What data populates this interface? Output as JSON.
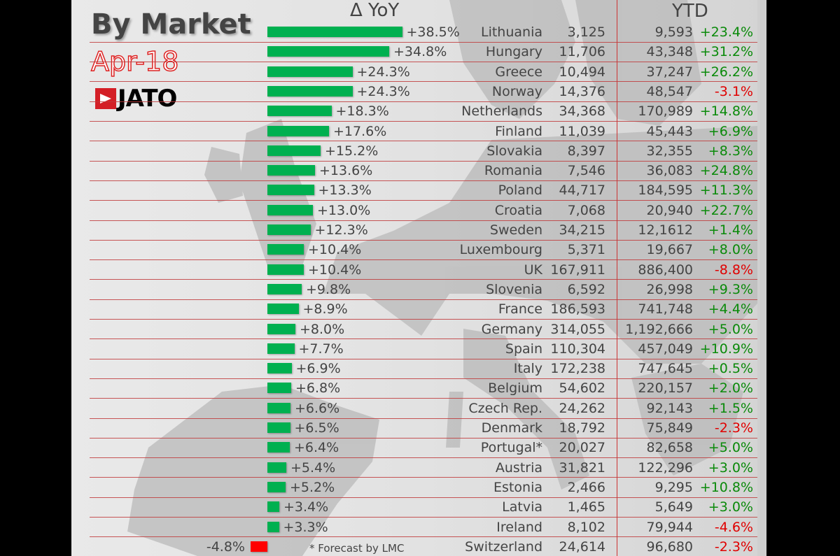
{
  "title": "By Market",
  "date": "Apr-18",
  "logo": "JATO",
  "footnote": "* Forecast by LMC",
  "colors": {
    "positive": "#00b050",
    "negative": "#ff0000",
    "ytd_positive": "#0a8a0a",
    "ytd_negative": "#e00000",
    "grid": "#c0393b",
    "text": "#444444"
  },
  "chart_data": {
    "type": "bar",
    "orientation": "horizontal",
    "headers": {
      "yoy": "Δ YoY",
      "ytd": "YTD"
    },
    "rows": [
      {
        "country": "Lithuania",
        "yoy": "+38.5%",
        "yoy_value": 38.5,
        "month": "3,125",
        "ytd": "9,593",
        "ytd_pct": "+23.4%"
      },
      {
        "country": "Hungary",
        "yoy": "+34.8%",
        "yoy_value": 34.8,
        "month": "11,706",
        "ytd": "43,348",
        "ytd_pct": "+31.2%"
      },
      {
        "country": "Greece",
        "yoy": "+24.3%",
        "yoy_value": 24.3,
        "month": "10,494",
        "ytd": "37,247",
        "ytd_pct": "+26.2%"
      },
      {
        "country": "Norway",
        "yoy": "+24.3%",
        "yoy_value": 24.3,
        "month": "14,376",
        "ytd": "48,547",
        "ytd_pct": "-3.1%"
      },
      {
        "country": "Netherlands",
        "yoy": "+18.3%",
        "yoy_value": 18.3,
        "month": "34,368",
        "ytd": "170,989",
        "ytd_pct": "+14.8%"
      },
      {
        "country": "Finland",
        "yoy": "+17.6%",
        "yoy_value": 17.6,
        "month": "11,039",
        "ytd": "45,443",
        "ytd_pct": "+6.9%"
      },
      {
        "country": "Slovakia",
        "yoy": "+15.2%",
        "yoy_value": 15.2,
        "month": "8,397",
        "ytd": "32,355",
        "ytd_pct": "+8.3%"
      },
      {
        "country": "Romania",
        "yoy": "+13.6%",
        "yoy_value": 13.6,
        "month": "7,546",
        "ytd": "36,083",
        "ytd_pct": "+24.8%"
      },
      {
        "country": "Poland",
        "yoy": "+13.3%",
        "yoy_value": 13.3,
        "month": "44,717",
        "ytd": "184,595",
        "ytd_pct": "+11.3%"
      },
      {
        "country": "Croatia",
        "yoy": "+13.0%",
        "yoy_value": 13.0,
        "month": "7,068",
        "ytd": "20,940",
        "ytd_pct": "+22.7%"
      },
      {
        "country": "Sweden",
        "yoy": "+12.3%",
        "yoy_value": 12.3,
        "month": "34,215",
        "ytd": "12,1612",
        "ytd_pct": "+1.4%"
      },
      {
        "country": "Luxembourg",
        "yoy": "+10.4%",
        "yoy_value": 10.4,
        "month": "5,371",
        "ytd": "19,667",
        "ytd_pct": "+8.0%"
      },
      {
        "country": "UK",
        "yoy": "+10.4%",
        "yoy_value": 10.4,
        "month": "167,911",
        "ytd": "886,400",
        "ytd_pct": "-8.8%"
      },
      {
        "country": "Slovenia",
        "yoy": "+9.8%",
        "yoy_value": 9.8,
        "month": "6,592",
        "ytd": "26,998",
        "ytd_pct": "+9.3%"
      },
      {
        "country": "France",
        "yoy": "+8.9%",
        "yoy_value": 8.9,
        "month": "186,593",
        "ytd": "741,748",
        "ytd_pct": "+4.4%"
      },
      {
        "country": "Germany",
        "yoy": "+8.0%",
        "yoy_value": 8.0,
        "month": "314,055",
        "ytd": "1,192,666",
        "ytd_pct": "+5.0%"
      },
      {
        "country": "Spain",
        "yoy": "+7.7%",
        "yoy_value": 7.7,
        "month": "110,304",
        "ytd": "457,049",
        "ytd_pct": "+10.9%"
      },
      {
        "country": "Italy",
        "yoy": "+6.9%",
        "yoy_value": 6.9,
        "month": "172,238",
        "ytd": "747,645",
        "ytd_pct": "+0.5%"
      },
      {
        "country": "Belgium",
        "yoy": "+6.8%",
        "yoy_value": 6.8,
        "month": "54,602",
        "ytd": "220,157",
        "ytd_pct": "+2.0%"
      },
      {
        "country": "Czech Rep.",
        "yoy": "+6.6%",
        "yoy_value": 6.6,
        "month": "24,262",
        "ytd": "92,143",
        "ytd_pct": "+1.5%"
      },
      {
        "country": "Denmark",
        "yoy": "+6.5%",
        "yoy_value": 6.5,
        "month": "18,792",
        "ytd": "75,849",
        "ytd_pct": "-2.3%"
      },
      {
        "country": "Portugal*",
        "yoy": "+6.4%",
        "yoy_value": 6.4,
        "month": "20,027",
        "ytd": "82,658",
        "ytd_pct": "+5.0%"
      },
      {
        "country": "Austria",
        "yoy": "+5.4%",
        "yoy_value": 5.4,
        "month": "31,821",
        "ytd": "122,296",
        "ytd_pct": "+3.0%"
      },
      {
        "country": "Estonia",
        "yoy": "+5.2%",
        "yoy_value": 5.2,
        "month": "2,466",
        "ytd": "9,295",
        "ytd_pct": "+10.8%"
      },
      {
        "country": "Latvia",
        "yoy": "+3.4%",
        "yoy_value": 3.4,
        "month": "1,465",
        "ytd": "5,649",
        "ytd_pct": "+3.0%"
      },
      {
        "country": "Ireland",
        "yoy": "+3.3%",
        "yoy_value": 3.3,
        "month": "8,102",
        "ytd": "79,944",
        "ytd_pct": "-4.6%"
      },
      {
        "country": "Switzerland",
        "yoy": "-4.8%",
        "yoy_value": -4.8,
        "month": "24,614",
        "ytd": "96,680",
        "ytd_pct": "-2.3%"
      }
    ]
  }
}
